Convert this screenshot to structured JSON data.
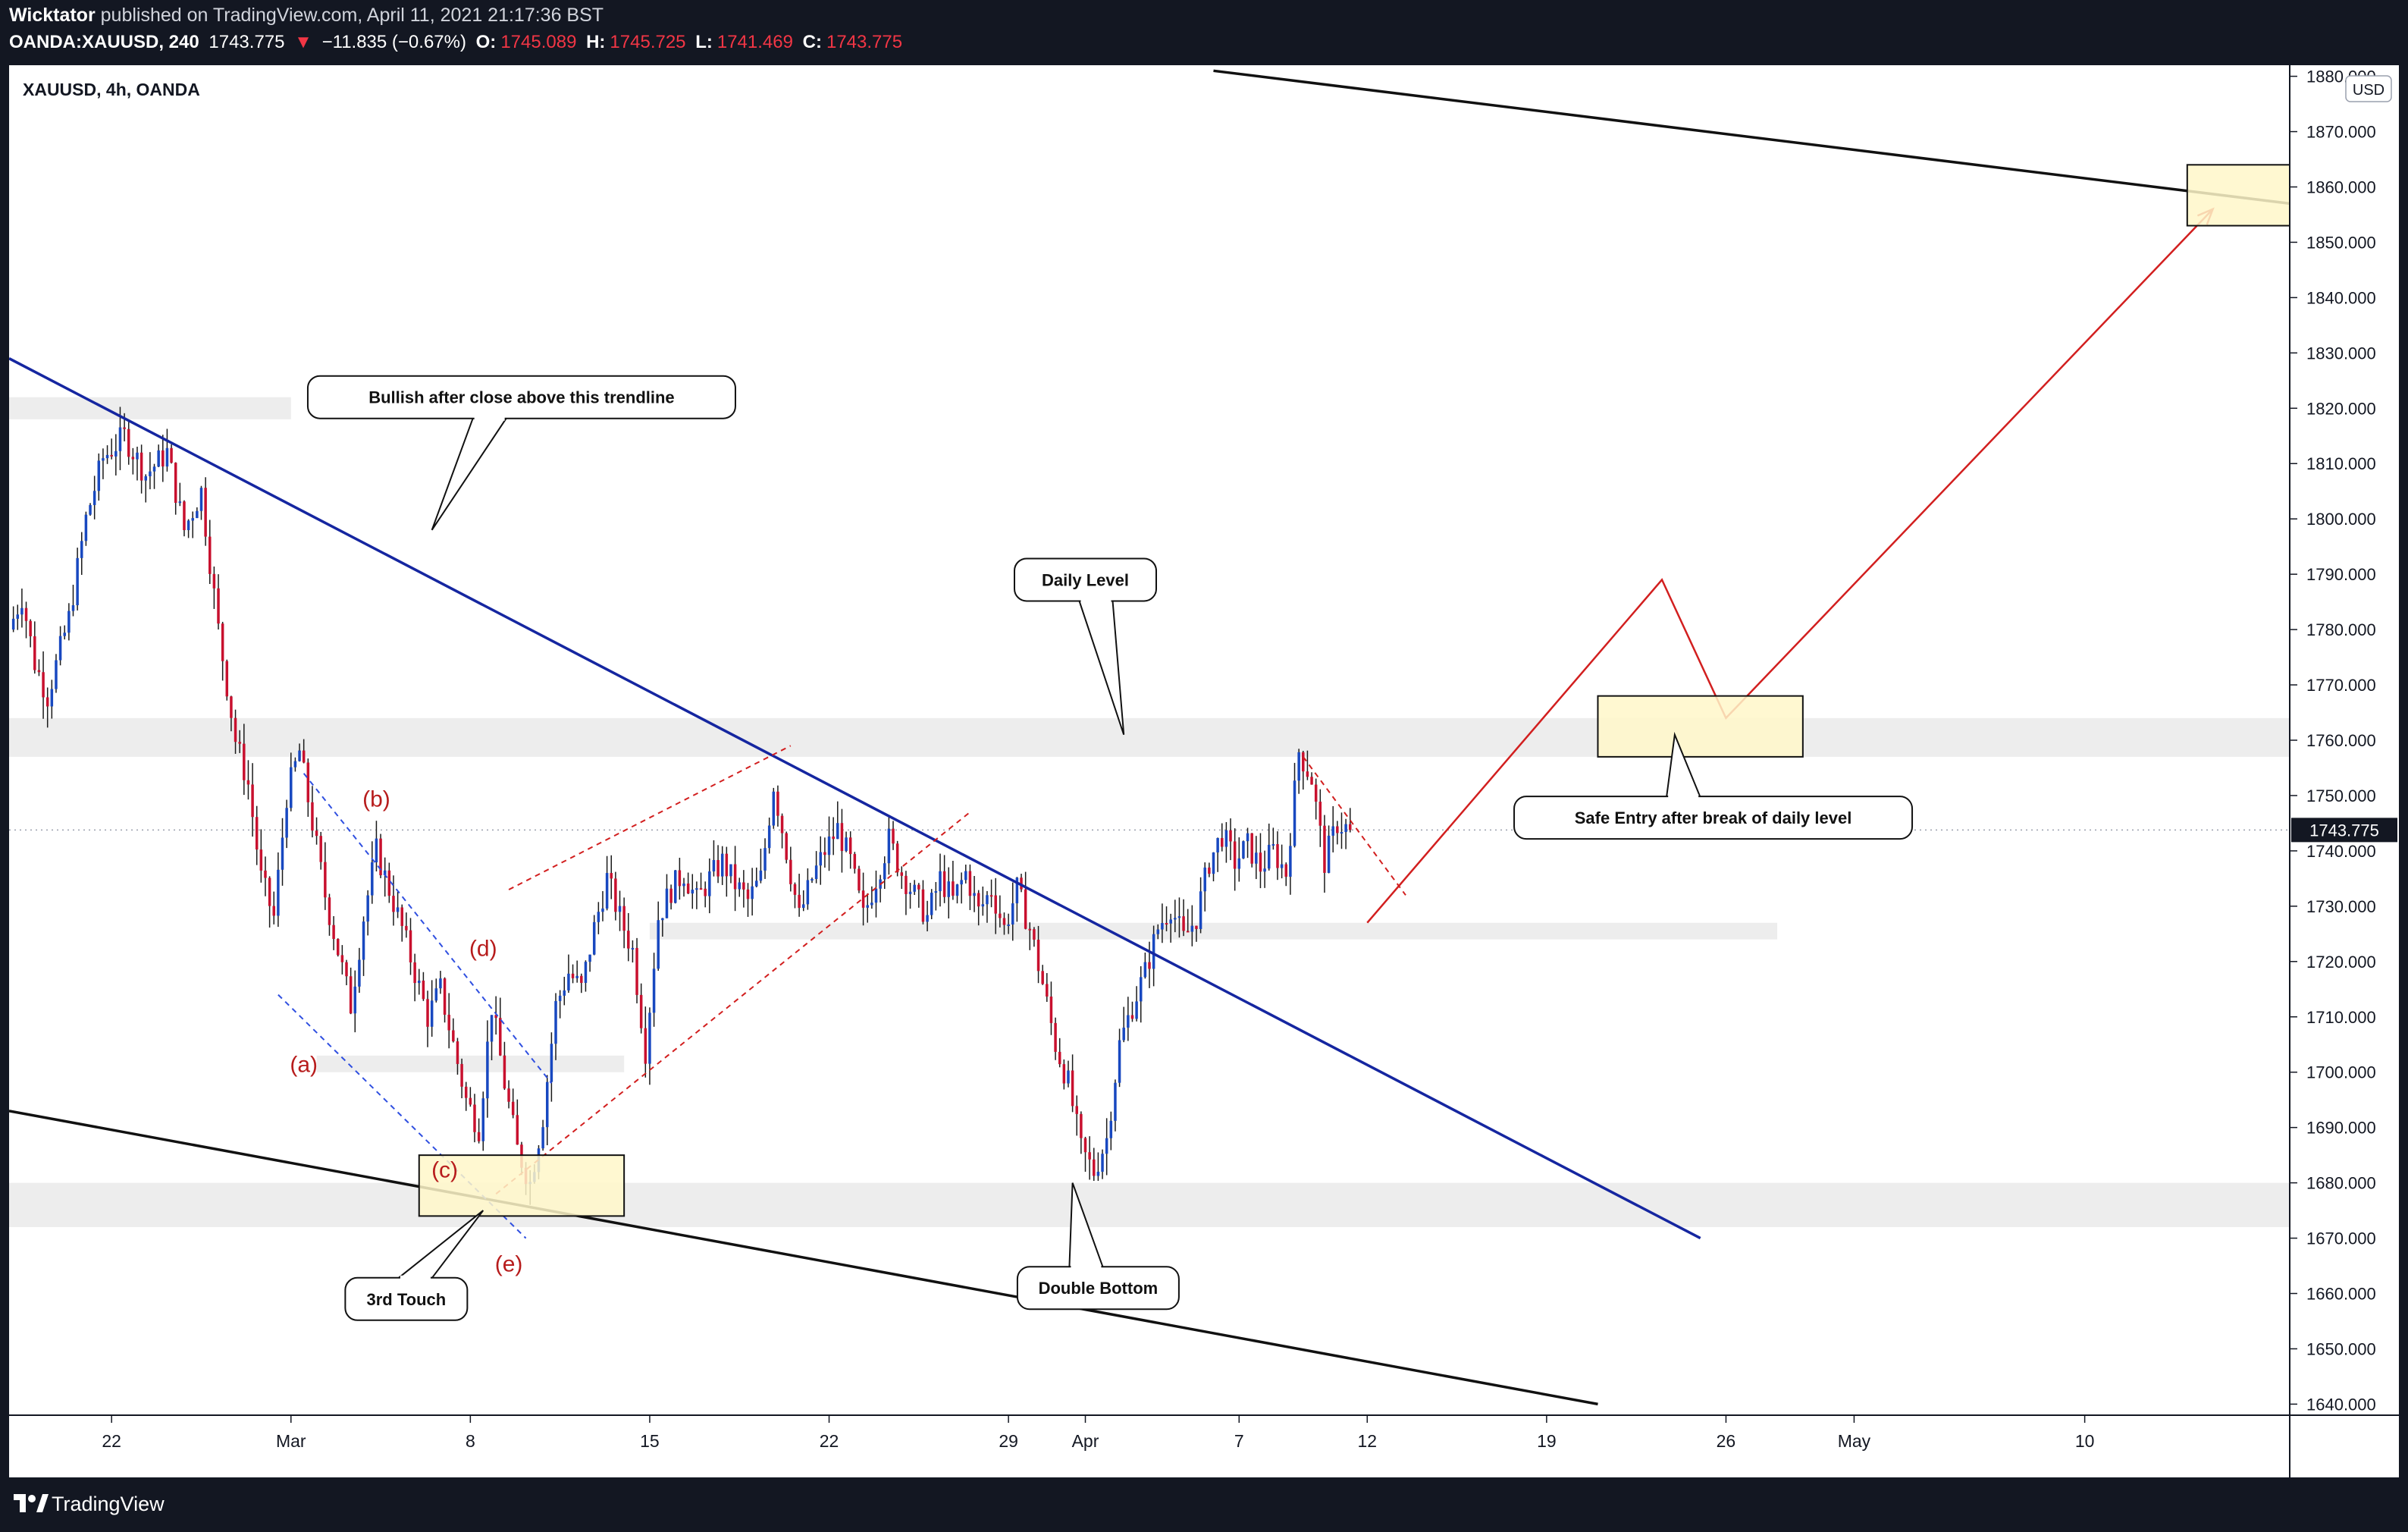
{
  "header": {
    "author": "Wicktator",
    "published": "published on TradingView.com, April 11, 2021 21:17:36 BST",
    "symbol_line": "OANDA:XAUUSD, 240",
    "last": "1743.775",
    "change": "−11.835 (−0.67%)",
    "open_label": "O:",
    "open": "1745.089",
    "high_label": "H:",
    "high": "1745.725",
    "low_label": "L:",
    "low": "1741.469",
    "close_label": "C:",
    "close": "1743.775"
  },
  "footer": {
    "brand": "TradingView",
    "logo_icon": "tradingview-logo-icon"
  },
  "chart_data": {
    "type": "candlestick",
    "title": "XAUUSD, 4h, OANDA",
    "currency": "USD",
    "ylim": [
      1638,
      1882
    ],
    "y_ticks": [
      1640,
      1650,
      1660,
      1670,
      1680,
      1690,
      1700,
      1710,
      1720,
      1730,
      1740,
      1750,
      1760,
      1770,
      1780,
      1790,
      1800,
      1810,
      1820,
      1830,
      1840,
      1850,
      1860,
      1870,
      1880
    ],
    "xlim": [
      "2021-02-18T00:00",
      "2021-05-18T00:00"
    ],
    "x_ticks": [
      {
        "date": "2021-02-22",
        "label": "22"
      },
      {
        "date": "2021-03-01",
        "label": "Mar"
      },
      {
        "date": "2021-03-08",
        "label": "8"
      },
      {
        "date": "2021-03-15",
        "label": "15"
      },
      {
        "date": "2021-03-22",
        "label": "22"
      },
      {
        "date": "2021-03-29",
        "label": "29"
      },
      {
        "date": "2021-04-01",
        "label": "Apr"
      },
      {
        "date": "2021-04-07",
        "label": "7"
      },
      {
        "date": "2021-04-12",
        "label": "12"
      },
      {
        "date": "2021-04-19",
        "label": "19"
      },
      {
        "date": "2021-04-26",
        "label": "26"
      },
      {
        "date": "2021-05-01",
        "label": "May"
      },
      {
        "date": "2021-05-10",
        "label": "10"
      }
    ],
    "last_price": 1743.775,
    "last_price_label": "1743.775",
    "colors": {
      "up": "#1848c0",
      "down": "#c8102e",
      "trend": "#1526a0",
      "plan": "#d21f1f",
      "zone_fill": "#fff7c9"
    },
    "price_path": [
      [
        "2021-02-18T00:00",
        1780
      ],
      [
        "2021-02-18T12:00",
        1786
      ],
      [
        "2021-02-19T00:00",
        1774
      ],
      [
        "2021-02-19T12:00",
        1768
      ],
      [
        "2021-02-20T08:00",
        1782
      ],
      [
        "2021-02-21T00:00",
        1800
      ],
      [
        "2021-02-21T16:00",
        1811
      ],
      [
        "2021-02-22T12:00",
        1815
      ],
      [
        "2021-02-23T08:00",
        1808
      ],
      [
        "2021-02-24T04:00",
        1812
      ],
      [
        "2021-02-24T20:00",
        1798
      ],
      [
        "2021-02-25T12:00",
        1805
      ],
      [
        "2021-02-26T04:00",
        1780
      ],
      [
        "2021-02-26T20:00",
        1760
      ],
      [
        "2021-02-27T08:00",
        1752
      ],
      [
        "2021-02-27T20:00",
        1735
      ],
      [
        "2021-02-28T08:00",
        1728
      ],
      [
        "2021-02-28T20:00",
        1750
      ],
      [
        "2021-03-01T08:00",
        1758
      ],
      [
        "2021-03-01T20:00",
        1745
      ],
      [
        "2021-03-02T08:00",
        1732
      ],
      [
        "2021-03-02T20:00",
        1722
      ],
      [
        "2021-03-03T08:00",
        1712
      ],
      [
        "2021-03-03T20:00",
        1728
      ],
      [
        "2021-03-04T08:00",
        1740
      ],
      [
        "2021-03-04T20:00",
        1733
      ],
      [
        "2021-03-05T08:00",
        1726
      ],
      [
        "2021-03-05T20:00",
        1718
      ],
      [
        "2021-03-06T08:00",
        1710
      ],
      [
        "2021-03-06T20:00",
        1715
      ],
      [
        "2021-03-07T08:00",
        1705
      ],
      [
        "2021-03-07T20:00",
        1695
      ],
      [
        "2021-03-08T08:00",
        1690
      ],
      [
        "2021-03-08T20:00",
        1712
      ],
      [
        "2021-03-09T08:00",
        1698
      ],
      [
        "2021-03-09T20:00",
        1686
      ],
      [
        "2021-03-10T08:00",
        1680
      ],
      [
        "2021-03-10T20:00",
        1692
      ],
      [
        "2021-03-11T08:00",
        1712
      ],
      [
        "2021-03-11T20:00",
        1718
      ],
      [
        "2021-03-12T08:00",
        1715
      ],
      [
        "2021-03-12T20:00",
        1726
      ],
      [
        "2021-03-13T08:00",
        1735
      ],
      [
        "2021-03-13T20:00",
        1728
      ],
      [
        "2021-03-14T08:00",
        1722
      ],
      [
        "2021-03-14T20:00",
        1704
      ],
      [
        "2021-03-15T08:00",
        1728
      ],
      [
        "2021-03-15T20:00",
        1733
      ],
      [
        "2021-03-16T08:00",
        1736
      ],
      [
        "2021-03-16T20:00",
        1731
      ],
      [
        "2021-03-17T08:00",
        1735
      ],
      [
        "2021-03-17T20:00",
        1738
      ],
      [
        "2021-03-18T08:00",
        1734
      ],
      [
        "2021-03-18T20:00",
        1731
      ],
      [
        "2021-03-19T08:00",
        1735
      ],
      [
        "2021-03-19T20:00",
        1752
      ],
      [
        "2021-03-20T08:00",
        1740
      ],
      [
        "2021-03-20T20:00",
        1728
      ],
      [
        "2021-03-21T08:00",
        1735
      ],
      [
        "2021-03-21T20:00",
        1740
      ],
      [
        "2021-03-22T08:00",
        1744
      ],
      [
        "2021-03-22T20:00",
        1738
      ],
      [
        "2021-03-23T08:00",
        1728
      ],
      [
        "2021-03-23T20:00",
        1735
      ],
      [
        "2021-03-24T08:00",
        1742
      ],
      [
        "2021-03-24T20:00",
        1736
      ],
      [
        "2021-03-25T08:00",
        1732
      ],
      [
        "2021-03-25T20:00",
        1728
      ],
      [
        "2021-03-26T08:00",
        1735
      ],
      [
        "2021-03-26T20:00",
        1731
      ],
      [
        "2021-03-27T08:00",
        1736
      ],
      [
        "2021-03-27T20:00",
        1729
      ],
      [
        "2021-03-28T08:00",
        1733
      ],
      [
        "2021-03-28T20:00",
        1726
      ],
      [
        "2021-03-29T08:00",
        1733
      ],
      [
        "2021-03-29T20:00",
        1726
      ],
      [
        "2021-03-30T08:00",
        1716
      ],
      [
        "2021-03-30T20:00",
        1705
      ],
      [
        "2021-03-31T08:00",
        1698
      ],
      [
        "2021-03-31T20:00",
        1686
      ],
      [
        "2021-04-01T08:00",
        1682
      ],
      [
        "2021-04-01T20:00",
        1688
      ],
      [
        "2021-04-02T08:00",
        1705
      ],
      [
        "2021-04-02T20:00",
        1712
      ],
      [
        "2021-04-03T08:00",
        1718
      ],
      [
        "2021-04-03T20:00",
        1726
      ],
      [
        "2021-04-04T08:00",
        1730
      ],
      [
        "2021-04-04T20:00",
        1724
      ],
      [
        "2021-04-05T08:00",
        1728
      ],
      [
        "2021-04-05T20:00",
        1738
      ],
      [
        "2021-04-06T08:00",
        1743
      ],
      [
        "2021-04-06T20:00",
        1738
      ],
      [
        "2021-04-07T08:00",
        1741
      ],
      [
        "2021-04-07T20:00",
        1737
      ],
      [
        "2021-04-08T08:00",
        1740
      ],
      [
        "2021-04-08T20:00",
        1736
      ],
      [
        "2021-04-09T08:00",
        1758
      ],
      [
        "2021-04-09T20:00",
        1753
      ],
      [
        "2021-04-10T08:00",
        1738
      ],
      [
        "2021-04-10T20:00",
        1745
      ],
      [
        "2021-04-11T08:00",
        1743.775
      ]
    ],
    "horizontal_zones": [
      {
        "from": "2021-02-18T00:00",
        "to": "2021-03-01T00:00",
        "low": 1818,
        "high": 1822
      },
      {
        "from": "2021-02-18T00:00",
        "to": "2021-05-18T00:00",
        "low": 1757,
        "high": 1764
      },
      {
        "from": "2021-03-15T00:00",
        "to": "2021-04-28T00:00",
        "low": 1724,
        "high": 1727
      },
      {
        "from": "2021-03-02T00:00",
        "to": "2021-03-14T00:00",
        "low": 1700,
        "high": 1703
      },
      {
        "from": "2021-02-18T00:00",
        "to": "2021-05-18T00:00",
        "low": 1672,
        "high": 1680
      }
    ],
    "boxes": [
      {
        "from": "2021-03-06T00:00",
        "to": "2021-03-14T00:00",
        "low": 1674,
        "high": 1685
      },
      {
        "from": "2021-04-21T00:00",
        "to": "2021-04-29T00:00",
        "low": 1757,
        "high": 1768
      },
      {
        "from": "2021-05-14T00:00",
        "to": "2021-05-18T00:00",
        "low": 1853,
        "high": 1864
      }
    ],
    "lines": [
      {
        "name": "descending-trendline",
        "style": "trend",
        "points": [
          [
            "2021-02-18T00:00",
            1829
          ],
          [
            "2021-04-25T00:00",
            1670
          ]
        ]
      },
      {
        "name": "lower-channel-line",
        "style": "black",
        "points": [
          [
            "2021-02-18T00:00",
            1693
          ],
          [
            "2021-04-21T00:00",
            1640
          ]
        ]
      },
      {
        "name": "upper-channel-line",
        "style": "black",
        "points": [
          [
            "2021-04-06T00:00",
            1881
          ],
          [
            "2021-05-18T00:00",
            1857
          ]
        ]
      },
      {
        "name": "wedge-upper",
        "style": "blue-dash",
        "points": [
          [
            "2021-03-01T12:00",
            1754
          ],
          [
            "2021-03-11T04:00",
            1698
          ]
        ]
      },
      {
        "name": "wedge-lower",
        "style": "blue-dash",
        "points": [
          [
            "2021-02-28T12:00",
            1714
          ],
          [
            "2021-03-10T04:00",
            1670
          ]
        ]
      },
      {
        "name": "flag-upper",
        "style": "red-dash",
        "points": [
          [
            "2021-03-09T12:00",
            1733
          ],
          [
            "2021-03-20T12:00",
            1759
          ]
        ]
      },
      {
        "name": "flag-lower",
        "style": "red-dash",
        "points": [
          [
            "2021-03-09T00:00",
            1678
          ],
          [
            "2021-03-27T12:00",
            1747
          ]
        ]
      },
      {
        "name": "short-pullback",
        "style": "red-dash",
        "points": [
          [
            "2021-04-09T12:00",
            1757
          ],
          [
            "2021-04-13T12:00",
            1732
          ]
        ]
      },
      {
        "name": "projected-path",
        "style": "plan",
        "points": [
          [
            "2021-04-12T00:00",
            1727
          ],
          [
            "2021-04-23T12:00",
            1789
          ],
          [
            "2021-04-26T00:00",
            1764
          ],
          [
            "2021-05-15T00:00",
            1856
          ]
        ]
      }
    ],
    "wave_labels": [
      {
        "text": "(a)",
        "date": "2021-03-01T12:00",
        "price": 1700
      },
      {
        "text": "(b)",
        "date": "2021-03-04T08:00",
        "price": 1748
      },
      {
        "text": "(c)",
        "date": "2021-03-07T00:00",
        "price": 1681
      },
      {
        "text": "(d)",
        "date": "2021-03-08T12:00",
        "price": 1721
      },
      {
        "text": "(e)",
        "date": "2021-03-09T12:00",
        "price": 1664
      }
    ],
    "callouts": [
      {
        "text": "Bullish after close above this trendline",
        "date": "2021-03-10T00:00",
        "price": 1822,
        "pointer": [
          "2021-03-06T12:00",
          1798
        ]
      },
      {
        "text": "Daily Level",
        "date": "2021-04-01T00:00",
        "price": 1789,
        "pointer": [
          "2021-04-02T12:00",
          1761
        ]
      },
      {
        "text": "Safe Entry after break of daily level",
        "date": "2021-04-25T12:00",
        "price": 1746,
        "pointer": [
          "2021-04-24T00:00",
          1761
        ]
      },
      {
        "text": "Double Bottom",
        "date": "2021-04-01T12:00",
        "price": 1661,
        "pointer": [
          "2021-03-31T12:00",
          1680
        ]
      },
      {
        "text": "3rd Touch",
        "date": "2021-03-05T12:00",
        "price": 1659,
        "pointer": [
          "2021-03-08T12:00",
          1675
        ]
      }
    ]
  }
}
